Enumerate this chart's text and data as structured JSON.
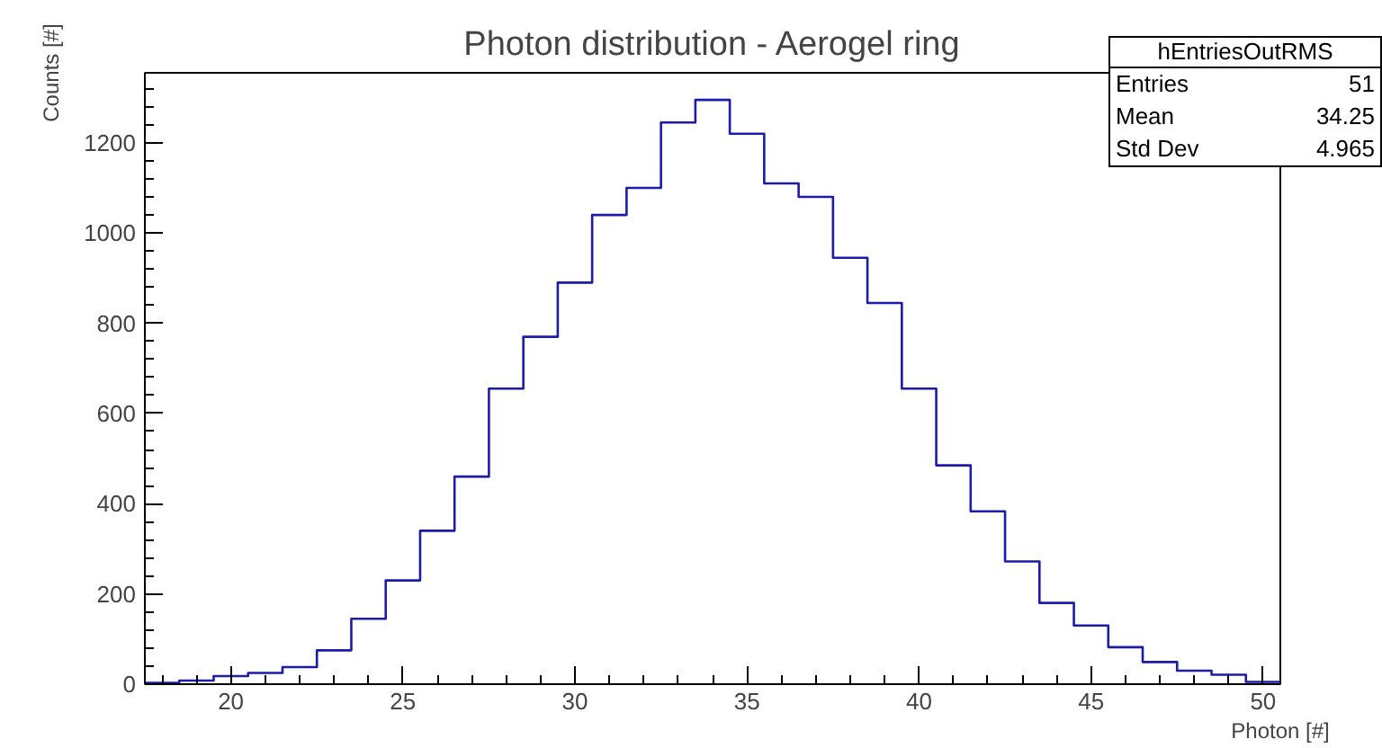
{
  "chart_data": {
    "type": "histogram",
    "title": "Photon distribution - Aerogel ring",
    "xlabel": "Photon [#]",
    "ylabel": "Counts [#]",
    "bins": [
      17.5,
      18.5,
      19.5,
      20.5,
      21.5,
      22.5,
      23.5,
      24.5,
      25.5,
      26.5,
      27.5,
      28.5,
      29.5,
      30.5,
      31.5,
      32.5,
      33.5,
      34.5,
      35.5,
      36.5,
      37.5,
      38.5,
      39.5,
      40.5,
      41.5,
      42.5,
      43.5,
      44.5,
      45.5,
      46.5,
      47.5,
      48.5,
      49.5,
      50.5
    ],
    "values": [
      3,
      8,
      18,
      25,
      38,
      75,
      145,
      230,
      340,
      460,
      655,
      770,
      890,
      1040,
      1100,
      1245,
      1295,
      1220,
      1110,
      1080,
      945,
      845,
      655,
      485,
      383,
      272,
      180,
      130,
      82,
      49,
      30,
      21,
      5
    ],
    "color": "#1c1ca8",
    "xlim": [
      17.5,
      50.5
    ],
    "ylim": [
      0,
      1355
    ],
    "xticks": [
      20,
      25,
      30,
      35,
      40,
      45,
      50
    ],
    "yticks": [
      0,
      200,
      400,
      600,
      800,
      1000,
      1200
    ],
    "grid": false,
    "annotations": [
      "hEntriesOutRMS",
      "Entries",
      "51",
      "Mean",
      "34.25",
      "Std Dev",
      "4.965"
    ]
  }
}
